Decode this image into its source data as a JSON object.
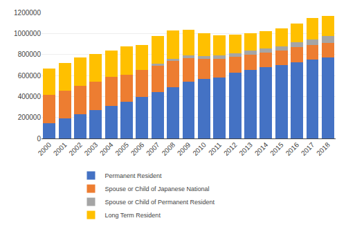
{
  "chart_data": {
    "type": "bar",
    "stacked": true,
    "categories": [
      "2000",
      "2001",
      "2002",
      "2003",
      "2004",
      "2005",
      "2006",
      "2007",
      "2008",
      "2009",
      "2010",
      "2011",
      "2012",
      "2013",
      "2014",
      "2015",
      "2016",
      "2017",
      "2018"
    ],
    "series": [
      {
        "name": "Permanent Resident",
        "color": "#4472C4",
        "values": [
          144374,
          192299,
          232669,
          271775,
          313070,
          349804,
          393975,
          443044,
          492056,
          540951,
          565077,
          580798,
          625470,
          654781,
          677019,
          696925,
          727111,
          749244,
          771568
        ]
      },
      {
        "name": "Spouse or Child of Japanese National",
        "color": "#ED7D31",
        "values": [
          271557,
          265499,
          271471,
          270802,
          272318,
          258923,
          260955,
          254675,
          245497,
          221923,
          192370,
          175782,
          155692,
          146997,
          143275,
          140450,
          142273,
          141455,
          140839
        ]
      },
      {
        "name": "Spouse or Child of Permanent Resident",
        "color": "#A5A5A5",
        "values": [
          0,
          0,
          0,
          0,
          0,
          0,
          0,
          12341,
          24675,
          28534,
          30068,
          32409,
          33395,
          34713,
          36138,
          38163,
          45402,
          55602,
          63985
        ]
      },
      {
        "name": "Long Term Resident",
        "color": "#FFC000",
        "values": [
          252105,
          264637,
          271037,
          259745,
          252462,
          267904,
          238974,
          268892,
          268662,
          243920,
          213469,
          192013,
          175686,
          167343,
          167935,
          170719,
          179834,
          200838,
          189524
        ]
      }
    ],
    "ylim": [
      0,
      1200000
    ],
    "yticks": [
      0,
      200000,
      400000,
      600000,
      800000,
      1000000,
      1200000
    ],
    "grid": true,
    "legend": "bottom"
  }
}
